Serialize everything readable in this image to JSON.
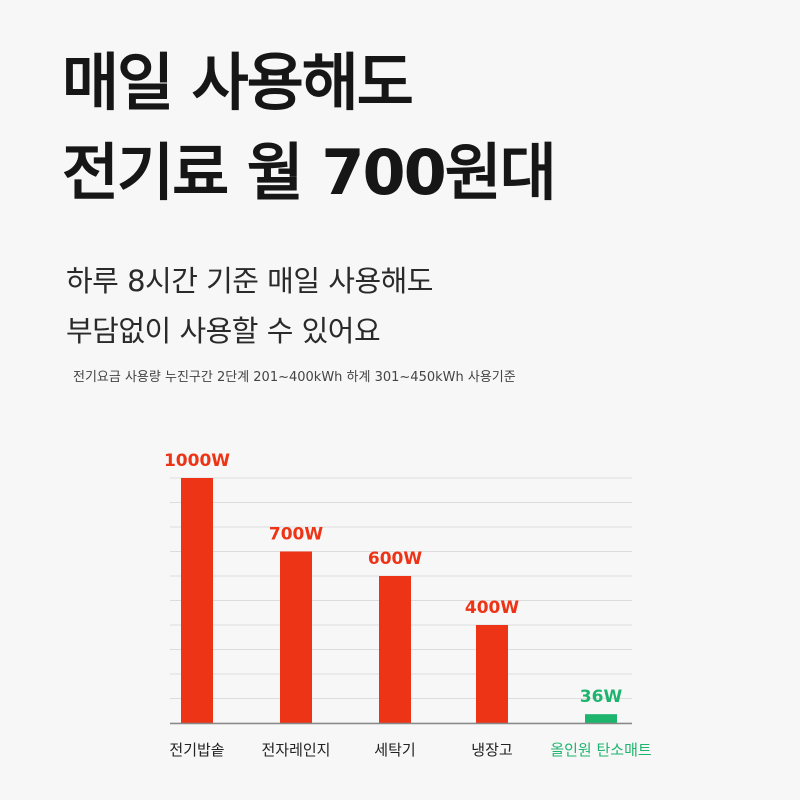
{
  "headline": {
    "line1": "매일 사용해도",
    "line2": "전기료 월 700원대"
  },
  "subtext": {
    "line1": "하루 8시간 기준 매일 사용해도",
    "line2": "부담없이 사용할 수 있어요"
  },
  "footnote": "전기요금 사용량 누진구간 2단계 201~400kWh 하계 301~450kWh 사용기준",
  "colors": {
    "accent": "#ee3416",
    "highlight": "#1db56e",
    "grid": "#dddddd",
    "axis": "#888888"
  },
  "chart_data": {
    "type": "bar",
    "categories": [
      "전기밥솥",
      "전자레인지",
      "세탁기",
      "냉장고",
      "올인원 탄소매트"
    ],
    "values": [
      1000,
      700,
      600,
      400,
      36
    ],
    "value_labels": [
      "1000W",
      "700W",
      "600W",
      "400W",
      "36W"
    ],
    "highlight_index": 4,
    "ylim": [
      0,
      1000
    ],
    "grid": true,
    "title": "",
    "xlabel": "",
    "ylabel": ""
  }
}
